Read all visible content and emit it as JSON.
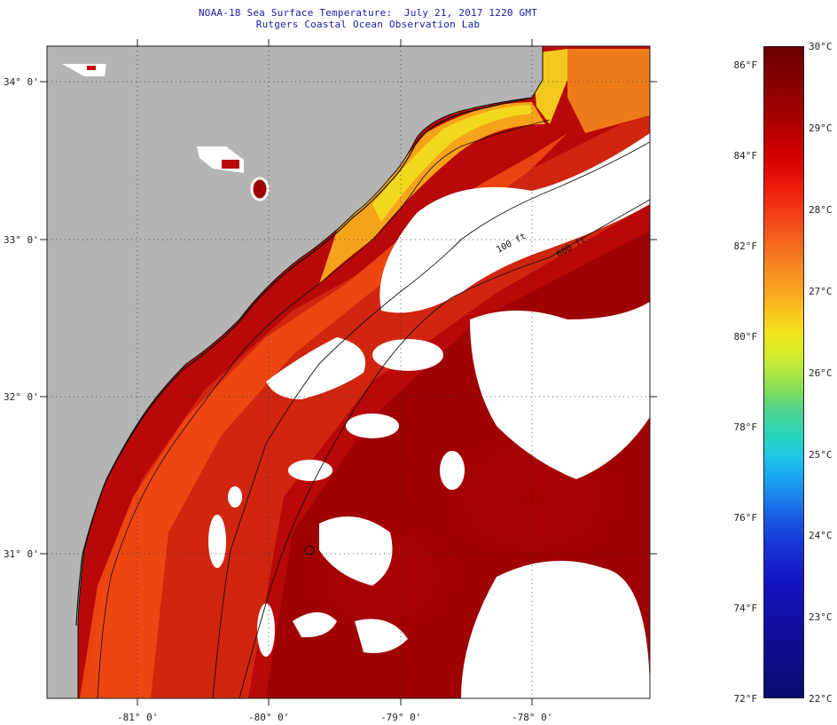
{
  "title": {
    "line1": "NOAA-18 Sea Surface Temperature:  July 21, 2017 1220 GMT",
    "line2": "Rutgers Coastal Ocean Observation Lab"
  },
  "map": {
    "lat_labels": [
      "34° 0'",
      "33° 0'",
      "32° 0'",
      "31° 0'"
    ],
    "lon_labels": [
      "-81° 0'",
      "-80° 0'",
      "-79° 0'",
      "-78° 0'"
    ],
    "isobath_labels": [
      "100 ft",
      "600 ft"
    ],
    "colors": {
      "land": "#b4b4b4",
      "cloud": "#ffffff",
      "coastline": "#111111"
    }
  },
  "colorbar": {
    "fahrenheit": [
      "86°F",
      "84°F",
      "82°F",
      "80°F",
      "78°F",
      "76°F",
      "74°F",
      "72°F"
    ],
    "celsius": [
      "30°C",
      "29°C",
      "28°C",
      "27°C",
      "26°C",
      "25°C",
      "24°C",
      "23°C",
      "22°C"
    ]
  }
}
